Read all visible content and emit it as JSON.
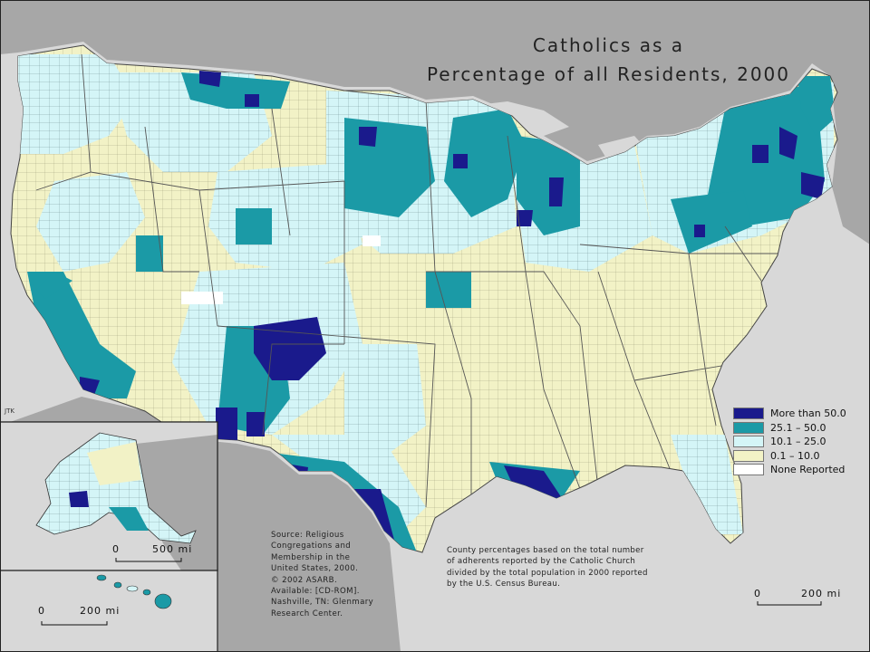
{
  "title": {
    "line1": "Catholics as a",
    "line2": "Percentage of all Residents, 2000"
  },
  "credit": "JTK",
  "legend": [
    {
      "label": "More than 50.0",
      "color": "#1a1a8c"
    },
    {
      "label": "25.1 – 50.0",
      "color": "#1b9aa6"
    },
    {
      "label": "10.1 – 25.0",
      "color": "#d4f5f7"
    },
    {
      "label": "0.1 – 10.0",
      "color": "#f2f2c6"
    },
    {
      "label": "None Reported",
      "color": "#ffffff"
    }
  ],
  "source": {
    "lines": [
      "Source:  Religious",
      "Congregations and",
      "Membership in the",
      "United States, 2000.",
      "© 2002 ASARB.",
      "Available: [CD-ROM].",
      "Nashville, TN: Glenmary",
      "Research Center."
    ]
  },
  "note": {
    "lines": [
      "County percentages based on the total number",
      "of adherents reported by the Catholic Church",
      "divided by the total population in 2000 reported",
      "by the U.S. Census Bureau."
    ]
  },
  "scales": {
    "alaska": {
      "zero": "0",
      "value": "500 mi"
    },
    "hawaii": {
      "zero": "0",
      "value": "200 mi"
    },
    "main": {
      "zero": "0",
      "value": "200 mi"
    }
  },
  "colors": {
    "water": "#d8d8d8",
    "land_outside": "#a7a7a7",
    "boundary": "#555555"
  }
}
